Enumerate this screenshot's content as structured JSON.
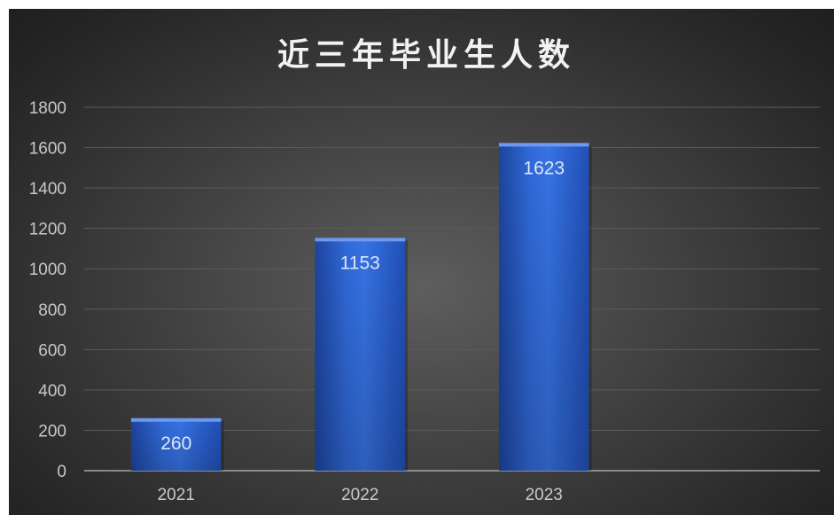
{
  "chart_data": {
    "type": "bar",
    "title": "近三年毕业生人数",
    "categories": [
      "2021",
      "2022",
      "2023"
    ],
    "values": [
      260,
      1153,
      1623
    ],
    "ylim": [
      0,
      1800
    ],
    "yticks": [
      "0",
      "200",
      "400",
      "600",
      "800",
      "1000",
      "1200",
      "1400",
      "1600",
      "1800"
    ],
    "grid": true,
    "legend": "none",
    "data_labels": "inside-end",
    "colors": {
      "bar": "#2f62d3",
      "bar_highlight": "#6f98ee",
      "gridline": "#5b5b5b",
      "axis": "#a6a6a6",
      "text": "#c9c9c9"
    }
  }
}
